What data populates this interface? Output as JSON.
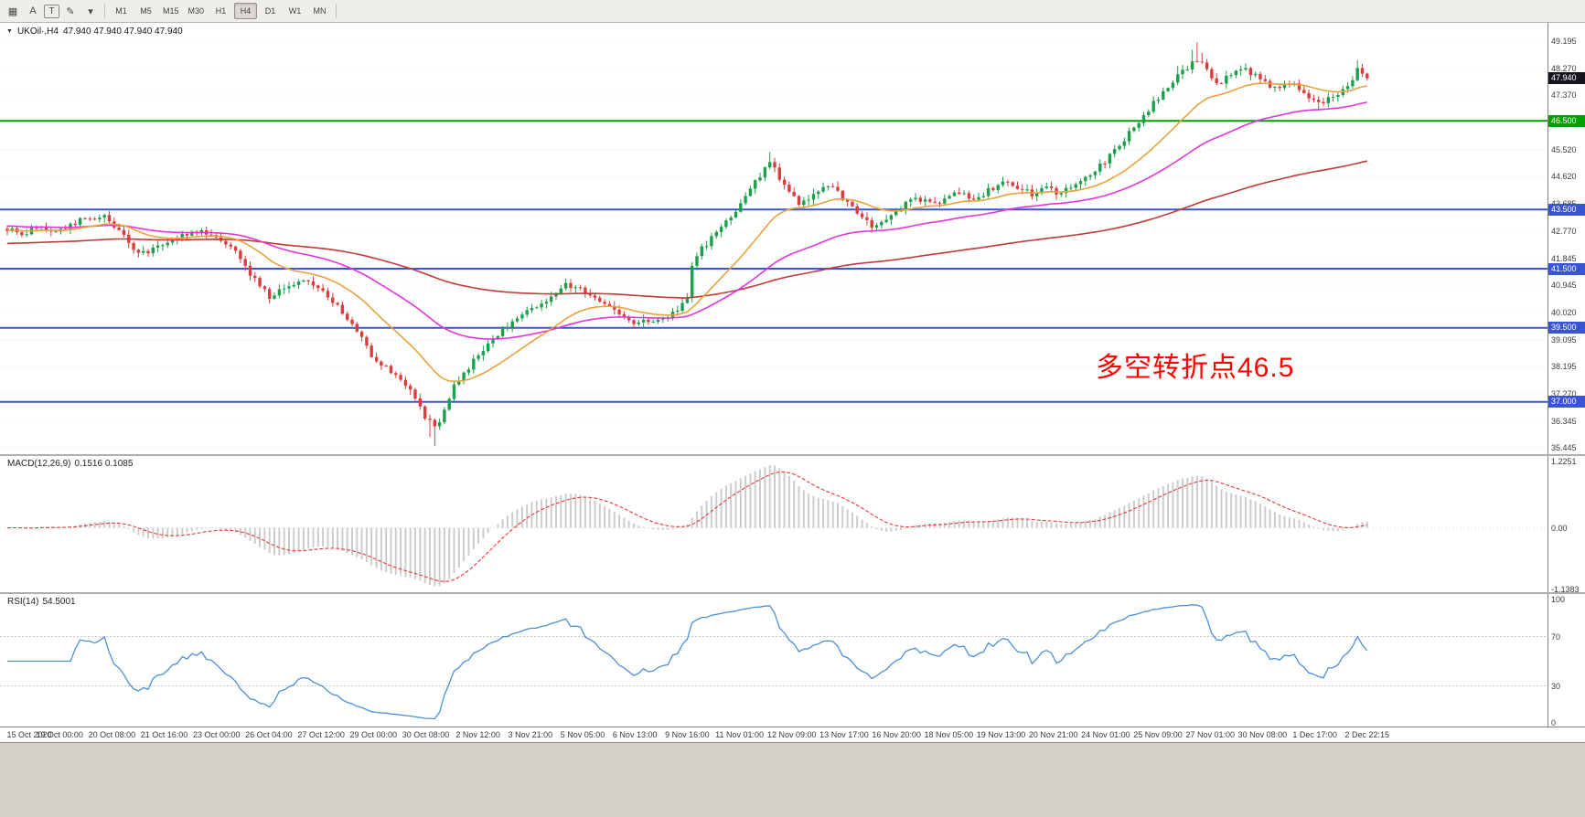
{
  "toolbar": {
    "icons": [
      {
        "name": "chart-list-icon",
        "glyph": "▦"
      },
      {
        "name": "text-label-icon",
        "glyph": "A"
      },
      {
        "name": "text-box-icon",
        "glyph": "T",
        "boxed": true
      },
      {
        "name": "draw-tools-icon",
        "glyph": "✎"
      },
      {
        "name": "draw-tools-caret-icon",
        "glyph": "▾"
      }
    ],
    "timeframes": [
      "M1",
      "M5",
      "M15",
      "M30",
      "H1",
      "H4",
      "D1",
      "W1",
      "MN"
    ],
    "selected_timeframe": "H4"
  },
  "symbol_bar": {
    "marker": "▼",
    "symbol": "UKOil·,H4",
    "ohlc": "47.940 47.940 47.940 47.940"
  },
  "annotation": {
    "text": "多空转折点46.5",
    "color": "#ff0000"
  },
  "indicators": {
    "macd_label": "MACD(12,26,9)",
    "macd_values": "0.1516 0.1085",
    "rsi_label": "RSI(14)",
    "rsi_value": "54.5001"
  },
  "price_scale": {
    "labels": [
      "49.195",
      "48.270",
      "47.370",
      "45.520",
      "44.620",
      "43.685",
      "42.770",
      "41.845",
      "40.945",
      "40.020",
      "39.095",
      "38.195",
      "37.270",
      "36.345",
      "35.445"
    ],
    "label_prices": [
      49.195,
      48.27,
      47.37,
      45.52,
      44.62,
      43.685,
      42.77,
      41.845,
      40.945,
      40.02,
      39.095,
      38.195,
      37.27,
      36.345,
      35.445
    ],
    "tags": [
      {
        "text": "47.940",
        "price": 47.94,
        "bg": "#15151f",
        "name": "current-price-tag"
      },
      {
        "text": "46.500",
        "price": 46.5,
        "bg": "#00a000",
        "name": "level-tag-46500"
      },
      {
        "text": "43.500",
        "price": 43.5,
        "bg": "#3a55d4",
        "name": "level-tag-43500"
      },
      {
        "text": "41.500",
        "price": 41.5,
        "bg": "#3a55d4",
        "name": "level-tag-41500"
      },
      {
        "text": "39.500",
        "price": 39.5,
        "bg": "#3a55d4",
        "name": "level-tag-39500"
      },
      {
        "text": "37.000",
        "price": 37.0,
        "bg": "#3a55d4",
        "name": "level-tag-37000"
      }
    ]
  },
  "macd_scale": [
    {
      "text": "1.2251",
      "value": 1.2251
    },
    {
      "text": "0.00",
      "value": 0
    },
    {
      "text": "-1.1383",
      "value": -1.1383
    }
  ],
  "rsi_scale": [
    {
      "text": "100",
      "value": 100
    },
    {
      "text": "70",
      "value": 70
    },
    {
      "text": "30",
      "value": 30
    },
    {
      "text": "0",
      "value": 0
    }
  ],
  "chart_data": {
    "type": "candlestick",
    "symbol": "UKOil",
    "timeframe": "H4",
    "bars": 281,
    "ylim": [
      35.445,
      49.195
    ],
    "current_price": 47.94,
    "current_ohlc": {
      "open": 47.94,
      "high": 47.94,
      "low": 47.94,
      "close": 47.94
    },
    "price_keyframes": [
      [
        0,
        42.85
      ],
      [
        3,
        42.6
      ],
      [
        6,
        42.95
      ],
      [
        9,
        42.7
      ],
      [
        12,
        42.9
      ],
      [
        16,
        43.2
      ],
      [
        20,
        43.25
      ],
      [
        24,
        42.6
      ],
      [
        27,
        42.0
      ],
      [
        30,
        42.15
      ],
      [
        33,
        42.45
      ],
      [
        37,
        42.7
      ],
      [
        41,
        42.75
      ],
      [
        44,
        42.5
      ],
      [
        47,
        42.2
      ],
      [
        50,
        41.35
      ],
      [
        54,
        40.55
      ],
      [
        57,
        40.8
      ],
      [
        60,
        41.1
      ],
      [
        63,
        40.95
      ],
      [
        66,
        40.6
      ],
      [
        69,
        40.0
      ],
      [
        72,
        39.4
      ],
      [
        75,
        38.6
      ],
      [
        78,
        38.15
      ],
      [
        81,
        37.7
      ],
      [
        84,
        37.2
      ],
      [
        86,
        36.5
      ],
      [
        88,
        36.1
      ],
      [
        90,
        36.7
      ],
      [
        92,
        37.6
      ],
      [
        94,
        37.9
      ],
      [
        97,
        38.6
      ],
      [
        101,
        39.3
      ],
      [
        105,
        39.8
      ],
      [
        108,
        40.1
      ],
      [
        112,
        40.6
      ],
      [
        115,
        40.95
      ],
      [
        118,
        40.8
      ],
      [
        122,
        40.45
      ],
      [
        126,
        40.0
      ],
      [
        129,
        39.6
      ],
      [
        132,
        39.75
      ],
      [
        136,
        39.9
      ],
      [
        139,
        40.25
      ],
      [
        140,
        40.5
      ],
      [
        141,
        41.5
      ],
      [
        143,
        42.2
      ],
      [
        145,
        42.5
      ],
      [
        147,
        42.85
      ],
      [
        150,
        43.5
      ],
      [
        153,
        44.2
      ],
      [
        156,
        44.9
      ],
      [
        157,
        45.15
      ],
      [
        159,
        44.6
      ],
      [
        161,
        44.1
      ],
      [
        163,
        43.75
      ],
      [
        166,
        44.0
      ],
      [
        169,
        44.35
      ],
      [
        172,
        43.9
      ],
      [
        175,
        43.35
      ],
      [
        178,
        42.95
      ],
      [
        181,
        43.2
      ],
      [
        184,
        43.55
      ],
      [
        187,
        43.9
      ],
      [
        190,
        43.7
      ],
      [
        193,
        43.85
      ],
      [
        196,
        44.1
      ],
      [
        199,
        43.8
      ],
      [
        202,
        44.15
      ],
      [
        205,
        44.45
      ],
      [
        208,
        44.25
      ],
      [
        211,
        44.0
      ],
      [
        214,
        44.2
      ],
      [
        217,
        44.05
      ],
      [
        220,
        44.4
      ],
      [
        223,
        44.7
      ],
      [
        226,
        45.1
      ],
      [
        229,
        45.7
      ],
      [
        232,
        46.3
      ],
      [
        235,
        46.9
      ],
      [
        238,
        47.5
      ],
      [
        241,
        48.0
      ],
      [
        243,
        48.3
      ],
      [
        245,
        48.6
      ],
      [
        247,
        48.2
      ],
      [
        249,
        47.7
      ],
      [
        252,
        48.05
      ],
      [
        255,
        48.2
      ],
      [
        258,
        47.9
      ],
      [
        261,
        47.6
      ],
      [
        264,
        47.8
      ],
      [
        267,
        47.45
      ],
      [
        270,
        47.1
      ],
      [
        273,
        47.35
      ],
      [
        276,
        47.7
      ],
      [
        278,
        48.2
      ],
      [
        280,
        47.94
      ]
    ],
    "wick_overrides": [
      [
        87,
        "low",
        35.8
      ],
      [
        88,
        "low",
        35.5
      ],
      [
        89,
        "low",
        36.05
      ],
      [
        141,
        "low",
        40.45
      ],
      [
        157,
        "high",
        45.45
      ],
      [
        158,
        "high",
        45.25
      ],
      [
        241,
        "high",
        48.35
      ],
      [
        244,
        "high",
        48.9
      ],
      [
        245,
        "high",
        49.15
      ],
      [
        246,
        "high",
        48.8
      ],
      [
        270,
        "low",
        46.85
      ],
      [
        278,
        "high",
        48.55
      ]
    ],
    "gridline_prices": [
      49.195,
      48.27,
      47.37,
      46.445,
      45.52,
      44.62,
      43.685,
      42.77,
      41.845,
      40.945,
      40.02,
      39.095,
      38.195,
      37.27,
      36.345,
      35.445
    ],
    "hlines": [
      {
        "price": 46.5,
        "color": "#00a000",
        "width": 2,
        "label": "46.500"
      },
      {
        "price": 43.5,
        "color": "#3a55d4",
        "width": 2,
        "label": "43.500"
      },
      {
        "price": 41.5,
        "color": "#3a55d4",
        "width": 2,
        "label": "41.500"
      },
      {
        "price": 39.5,
        "color": "#3a55d4",
        "width": 2,
        "label": "39.500"
      },
      {
        "price": 37.0,
        "color": "#3a55d4",
        "width": 2,
        "label": "37.000"
      }
    ],
    "moving_averages": [
      {
        "name": "ma-fast",
        "period": 21,
        "color": "#e8a33c",
        "seed": 42.8
      },
      {
        "name": "ma-mid",
        "period": 55,
        "color": "#e435dc",
        "seed": 42.95
      },
      {
        "name": "ma-slow",
        "period": 160,
        "color": "#c03a3a",
        "seed": 42.35
      }
    ],
    "colors": {
      "up": "#1ca04c",
      "down": "#da3d3d"
    },
    "macd": {
      "fast": 12,
      "slow": 26,
      "signal_period": 9,
      "current": 0.1516,
      "current_signal": 0.1085,
      "ylim": [
        -1.1383,
        1.2251
      ],
      "hist_color": "#cccccc",
      "signal_color": "#e03c3c"
    },
    "rsi": {
      "period": 14,
      "current": 54.5001,
      "levels": [
        30,
        70
      ],
      "ylim": [
        0,
        100
      ],
      "color": "#4c8fd6"
    },
    "x_labels": [
      "15 Oct 2020",
      "19 Oct 00:00",
      "20 Oct 08:00",
      "21 Oct 16:00",
      "23 Oct 00:00",
      "26 Oct 04:00",
      "27 Oct 12:00",
      "29 Oct 00:00",
      "30 Oct 08:00",
      "2 Nov 12:00",
      "3 Nov 21:00",
      "5 Nov 05:00",
      "6 Nov 13:00",
      "9 Nov 16:00",
      "11 Nov 01:00",
      "12 Nov 09:00",
      "13 Nov 17:00",
      "16 Nov 20:00",
      "18 Nov 05:00",
      "19 Nov 13:00",
      "20 Nov 21:00",
      "24 Nov 01:00",
      "25 Nov 09:00",
      "27 Nov 01:00",
      "30 Nov 08:00",
      "1 Dec 17:00",
      "2 Dec 22:15"
    ]
  }
}
